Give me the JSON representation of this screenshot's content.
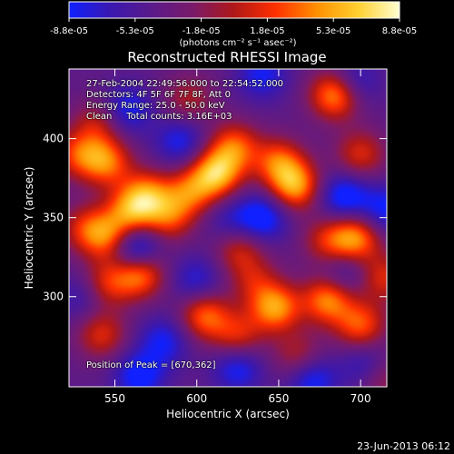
{
  "chart_data": {
    "type": "heatmap",
    "title": "Reconstructed RHESSI Image",
    "xlabel": "Heliocentric X (arcsec)",
    "ylabel": "Heliocentric Y (arcsec)",
    "xlim": [
      522,
      716
    ],
    "ylim": [
      243,
      444
    ],
    "xticks": [
      550,
      600,
      650,
      700
    ],
    "yticks": [
      300,
      350,
      400
    ],
    "colorbar": {
      "range": [
        -8.8e-05,
        8.8e-05
      ],
      "ticks": [
        "-8.8e-05",
        "-5.3e-05",
        "-1.8e-05",
        "1.8e-05",
        "5.3e-05",
        "8.8e-05"
      ],
      "unit_label": "(photons cm⁻² s⁻¹ asec⁻²)",
      "colors": [
        "#1020ff",
        "#3a18b0",
        "#5a1a8a",
        "#7a1a6a",
        "#b01818",
        "#ff3000",
        "#ff9000",
        "#ffd030",
        "#ffffd0"
      ]
    },
    "annotations": [
      "27-Feb-2004 22:49:56.000 to 22:54:52.000",
      "Detectors: 4F 5F 6F 7F 8F, Att 0",
      "Energy Range: 25.0 - 50.0 keV",
      "Clean     Total counts: 3.16E+03"
    ],
    "peak_label": "Position of Peak = [670,362]",
    "blobs": [
      {
        "x": 685,
        "y": 428,
        "v": 1.0
      },
      {
        "x": 612,
        "y": 378,
        "v": 1.0
      },
      {
        "x": 660,
        "y": 370,
        "v": 0.9
      },
      {
        "x": 650,
        "y": 385,
        "v": 0.7
      },
      {
        "x": 623,
        "y": 395,
        "v": 0.7
      },
      {
        "x": 545,
        "y": 385,
        "v": 0.75
      },
      {
        "x": 528,
        "y": 390,
        "v": 0.6
      },
      {
        "x": 570,
        "y": 365,
        "v": 0.7
      },
      {
        "x": 560,
        "y": 354,
        "v": 0.75
      },
      {
        "x": 596,
        "y": 366,
        "v": 0.65
      },
      {
        "x": 583,
        "y": 350,
        "v": 0.6
      },
      {
        "x": 547,
        "y": 337,
        "v": 0.7
      },
      {
        "x": 533,
        "y": 343,
        "v": 0.55
      },
      {
        "x": 565,
        "y": 315,
        "v": 0.9
      },
      {
        "x": 545,
        "y": 308,
        "v": 0.55
      },
      {
        "x": 542,
        "y": 276,
        "v": 0.55
      },
      {
        "x": 605,
        "y": 288,
        "v": 0.75
      },
      {
        "x": 625,
        "y": 275,
        "v": 0.55
      },
      {
        "x": 648,
        "y": 293,
        "v": 0.9
      },
      {
        "x": 680,
        "y": 298,
        "v": 0.85
      },
      {
        "x": 700,
        "y": 282,
        "v": 0.7
      },
      {
        "x": 662,
        "y": 262,
        "v": 0.45
      },
      {
        "x": 697,
        "y": 337,
        "v": 0.85
      },
      {
        "x": 680,
        "y": 335,
        "v": 0.5
      },
      {
        "x": 714,
        "y": 312,
        "v": 0.55
      },
      {
        "x": 626,
        "y": 330,
        "v": 0.5
      },
      {
        "x": 635,
        "y": 310,
        "v": 0.4
      },
      {
        "x": 700,
        "y": 390,
        "v": 0.55
      },
      {
        "x": 595,
        "y": 425,
        "v": 0.4
      },
      {
        "x": 540,
        "y": 410,
        "v": 0.45
      },
      {
        "x": 711,
        "y": 250,
        "v": 0.6
      },
      {
        "x": 580,
        "y": 272,
        "v": -0.45
      },
      {
        "x": 562,
        "y": 330,
        "v": -0.85
      },
      {
        "x": 640,
        "y": 350,
        "v": -0.6
      },
      {
        "x": 690,
        "y": 363,
        "v": -0.6
      },
      {
        "x": 620,
        "y": 348,
        "v": -0.3
      },
      {
        "x": 705,
        "y": 255,
        "v": -0.6
      },
      {
        "x": 670,
        "y": 248,
        "v": -0.55
      },
      {
        "x": 625,
        "y": 255,
        "v": -0.5
      },
      {
        "x": 565,
        "y": 250,
        "v": -0.55
      },
      {
        "x": 715,
        "y": 355,
        "v": -0.5
      },
      {
        "x": 690,
        "y": 315,
        "v": -0.35
      },
      {
        "x": 695,
        "y": 435,
        "v": -0.5
      },
      {
        "x": 640,
        "y": 440,
        "v": -0.45
      },
      {
        "x": 557,
        "y": 418,
        "v": -0.5
      },
      {
        "x": 590,
        "y": 398,
        "v": -0.45
      },
      {
        "x": 600,
        "y": 310,
        "v": -0.4
      },
      {
        "x": 530,
        "y": 300,
        "v": -0.3
      }
    ]
  },
  "footer": {
    "date": "23-Jun-2013 06:12"
  }
}
